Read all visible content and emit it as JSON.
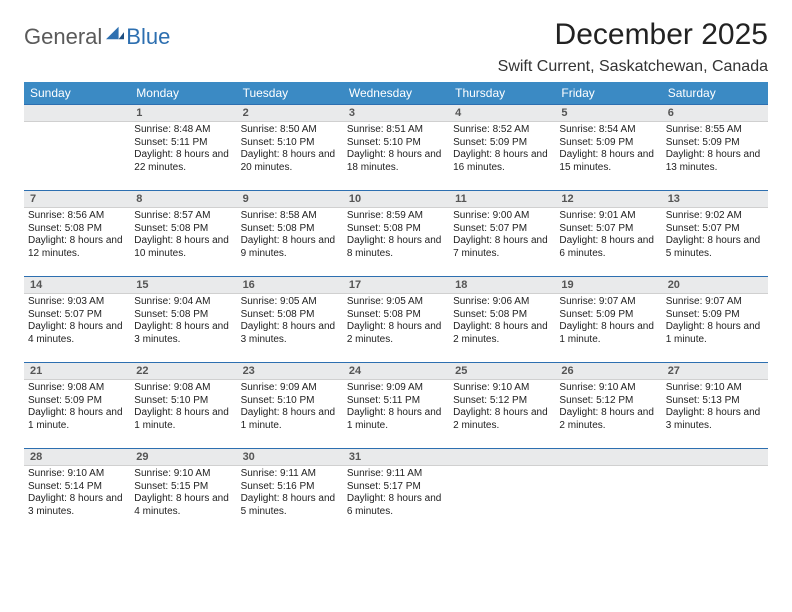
{
  "brand": {
    "word1": "General",
    "word2": "Blue"
  },
  "title": "December 2025",
  "location": "Swift Current, Saskatchewan, Canada",
  "colors": {
    "header_bg": "#3b8ac4",
    "header_text": "#ffffff",
    "daynum_bg": "#e9eaeb",
    "daynum_border_top": "#2d6fb0",
    "body_text": "#222222",
    "logo_gray": "#5a5a5a",
    "logo_blue": "#2d6fb0"
  },
  "day_headers": [
    "Sunday",
    "Monday",
    "Tuesday",
    "Wednesday",
    "Thursday",
    "Friday",
    "Saturday"
  ],
  "weeks": [
    [
      {
        "n": "",
        "sunrise": "",
        "sunset": "",
        "daylight": ""
      },
      {
        "n": "1",
        "sunrise": "Sunrise: 8:48 AM",
        "sunset": "Sunset: 5:11 PM",
        "daylight": "Daylight: 8 hours and 22 minutes."
      },
      {
        "n": "2",
        "sunrise": "Sunrise: 8:50 AM",
        "sunset": "Sunset: 5:10 PM",
        "daylight": "Daylight: 8 hours and 20 minutes."
      },
      {
        "n": "3",
        "sunrise": "Sunrise: 8:51 AM",
        "sunset": "Sunset: 5:10 PM",
        "daylight": "Daylight: 8 hours and 18 minutes."
      },
      {
        "n": "4",
        "sunrise": "Sunrise: 8:52 AM",
        "sunset": "Sunset: 5:09 PM",
        "daylight": "Daylight: 8 hours and 16 minutes."
      },
      {
        "n": "5",
        "sunrise": "Sunrise: 8:54 AM",
        "sunset": "Sunset: 5:09 PM",
        "daylight": "Daylight: 8 hours and 15 minutes."
      },
      {
        "n": "6",
        "sunrise": "Sunrise: 8:55 AM",
        "sunset": "Sunset: 5:09 PM",
        "daylight": "Daylight: 8 hours and 13 minutes."
      }
    ],
    [
      {
        "n": "7",
        "sunrise": "Sunrise: 8:56 AM",
        "sunset": "Sunset: 5:08 PM",
        "daylight": "Daylight: 8 hours and 12 minutes."
      },
      {
        "n": "8",
        "sunrise": "Sunrise: 8:57 AM",
        "sunset": "Sunset: 5:08 PM",
        "daylight": "Daylight: 8 hours and 10 minutes."
      },
      {
        "n": "9",
        "sunrise": "Sunrise: 8:58 AM",
        "sunset": "Sunset: 5:08 PM",
        "daylight": "Daylight: 8 hours and 9 minutes."
      },
      {
        "n": "10",
        "sunrise": "Sunrise: 8:59 AM",
        "sunset": "Sunset: 5:08 PM",
        "daylight": "Daylight: 8 hours and 8 minutes."
      },
      {
        "n": "11",
        "sunrise": "Sunrise: 9:00 AM",
        "sunset": "Sunset: 5:07 PM",
        "daylight": "Daylight: 8 hours and 7 minutes."
      },
      {
        "n": "12",
        "sunrise": "Sunrise: 9:01 AM",
        "sunset": "Sunset: 5:07 PM",
        "daylight": "Daylight: 8 hours and 6 minutes."
      },
      {
        "n": "13",
        "sunrise": "Sunrise: 9:02 AM",
        "sunset": "Sunset: 5:07 PM",
        "daylight": "Daylight: 8 hours and 5 minutes."
      }
    ],
    [
      {
        "n": "14",
        "sunrise": "Sunrise: 9:03 AM",
        "sunset": "Sunset: 5:07 PM",
        "daylight": "Daylight: 8 hours and 4 minutes."
      },
      {
        "n": "15",
        "sunrise": "Sunrise: 9:04 AM",
        "sunset": "Sunset: 5:08 PM",
        "daylight": "Daylight: 8 hours and 3 minutes."
      },
      {
        "n": "16",
        "sunrise": "Sunrise: 9:05 AM",
        "sunset": "Sunset: 5:08 PM",
        "daylight": "Daylight: 8 hours and 3 minutes."
      },
      {
        "n": "17",
        "sunrise": "Sunrise: 9:05 AM",
        "sunset": "Sunset: 5:08 PM",
        "daylight": "Daylight: 8 hours and 2 minutes."
      },
      {
        "n": "18",
        "sunrise": "Sunrise: 9:06 AM",
        "sunset": "Sunset: 5:08 PM",
        "daylight": "Daylight: 8 hours and 2 minutes."
      },
      {
        "n": "19",
        "sunrise": "Sunrise: 9:07 AM",
        "sunset": "Sunset: 5:09 PM",
        "daylight": "Daylight: 8 hours and 1 minute."
      },
      {
        "n": "20",
        "sunrise": "Sunrise: 9:07 AM",
        "sunset": "Sunset: 5:09 PM",
        "daylight": "Daylight: 8 hours and 1 minute."
      }
    ],
    [
      {
        "n": "21",
        "sunrise": "Sunrise: 9:08 AM",
        "sunset": "Sunset: 5:09 PM",
        "daylight": "Daylight: 8 hours and 1 minute."
      },
      {
        "n": "22",
        "sunrise": "Sunrise: 9:08 AM",
        "sunset": "Sunset: 5:10 PM",
        "daylight": "Daylight: 8 hours and 1 minute."
      },
      {
        "n": "23",
        "sunrise": "Sunrise: 9:09 AM",
        "sunset": "Sunset: 5:10 PM",
        "daylight": "Daylight: 8 hours and 1 minute."
      },
      {
        "n": "24",
        "sunrise": "Sunrise: 9:09 AM",
        "sunset": "Sunset: 5:11 PM",
        "daylight": "Daylight: 8 hours and 1 minute."
      },
      {
        "n": "25",
        "sunrise": "Sunrise: 9:10 AM",
        "sunset": "Sunset: 5:12 PM",
        "daylight": "Daylight: 8 hours and 2 minutes."
      },
      {
        "n": "26",
        "sunrise": "Sunrise: 9:10 AM",
        "sunset": "Sunset: 5:12 PM",
        "daylight": "Daylight: 8 hours and 2 minutes."
      },
      {
        "n": "27",
        "sunrise": "Sunrise: 9:10 AM",
        "sunset": "Sunset: 5:13 PM",
        "daylight": "Daylight: 8 hours and 3 minutes."
      }
    ],
    [
      {
        "n": "28",
        "sunrise": "Sunrise: 9:10 AM",
        "sunset": "Sunset: 5:14 PM",
        "daylight": "Daylight: 8 hours and 3 minutes."
      },
      {
        "n": "29",
        "sunrise": "Sunrise: 9:10 AM",
        "sunset": "Sunset: 5:15 PM",
        "daylight": "Daylight: 8 hours and 4 minutes."
      },
      {
        "n": "30",
        "sunrise": "Sunrise: 9:11 AM",
        "sunset": "Sunset: 5:16 PM",
        "daylight": "Daylight: 8 hours and 5 minutes."
      },
      {
        "n": "31",
        "sunrise": "Sunrise: 9:11 AM",
        "sunset": "Sunset: 5:17 PM",
        "daylight": "Daylight: 8 hours and 6 minutes."
      },
      {
        "n": "",
        "sunrise": "",
        "sunset": "",
        "daylight": ""
      },
      {
        "n": "",
        "sunrise": "",
        "sunset": "",
        "daylight": ""
      },
      {
        "n": "",
        "sunrise": "",
        "sunset": "",
        "daylight": ""
      }
    ]
  ]
}
